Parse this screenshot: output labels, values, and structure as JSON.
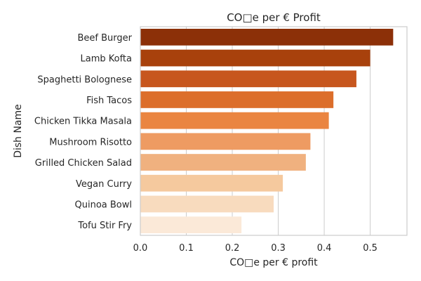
{
  "chart_data": {
    "type": "bar",
    "orientation": "horizontal",
    "title": "CO□e per € Profit",
    "xlabel": "CO□e per € profit",
    "ylabel": "Dish Name",
    "categories": [
      "Beef Burger",
      "Lamb Kofta",
      "Spaghetti Bolognese",
      "Fish Tacos",
      "Chicken Tikka Masala",
      "Mushroom Risotto",
      "Grilled Chicken Salad",
      "Vegan Curry",
      "Quinoa Bowl",
      "Tofu Stir Fry"
    ],
    "values": [
      0.55,
      0.5,
      0.47,
      0.42,
      0.41,
      0.37,
      0.36,
      0.31,
      0.29,
      0.22
    ],
    "colors": [
      "#8c3008",
      "#a8410c",
      "#c7561e",
      "#dc6e2b",
      "#ea8541",
      "#ee9b62",
      "#f0b17f",
      "#f5c99e",
      "#f8dbbe",
      "#fbe9d8"
    ],
    "xlim": [
      0,
      0.58
    ],
    "xticks": [
      0.0,
      0.1,
      0.2,
      0.3,
      0.4,
      0.5
    ],
    "xtick_labels": [
      "0.0",
      "0.1",
      "0.2",
      "0.3",
      "0.4",
      "0.5"
    ],
    "grid": "vertical",
    "legend": "none"
  }
}
